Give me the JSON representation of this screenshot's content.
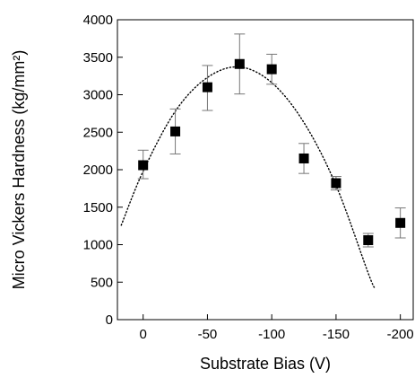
{
  "chart_data": {
    "type": "scatter",
    "xlabel": "Substrate Bias (V)",
    "ylabel": "Micro Vickers Hardness (kg/mm²)",
    "xlim": [
      20,
      -210
    ],
    "ylim": [
      0,
      4000
    ],
    "x_ticks": [
      0,
      -50,
      -100,
      -150,
      -200
    ],
    "x_tick_labels": [
      "0",
      "-50",
      "-100",
      "-150",
      "-200"
    ],
    "y_ticks": [
      0,
      500,
      1000,
      1500,
      2000,
      2500,
      3000,
      3500,
      4000
    ],
    "y_tick_labels": [
      "0",
      "500",
      "1000",
      "1500",
      "2000",
      "2500",
      "3000",
      "3500",
      "4000"
    ],
    "series": [
      {
        "marker": "square",
        "color": "#000000",
        "points": [
          {
            "x": 0,
            "y": 2060,
            "err_low": 1880,
            "err_high": 2260
          },
          {
            "x": -25,
            "y": 2510,
            "err_low": 2210,
            "err_high": 2810
          },
          {
            "x": -50,
            "y": 3100,
            "err_low": 2790,
            "err_high": 3390
          },
          {
            "x": -75,
            "y": 3410,
            "err_low": 3010,
            "err_high": 3810
          },
          {
            "x": -100,
            "y": 3340,
            "err_low": 3140,
            "err_high": 3540
          },
          {
            "x": -125,
            "y": 2150,
            "err_low": 1950,
            "err_high": 2350
          },
          {
            "x": -150,
            "y": 1820,
            "err_low": 1730,
            "err_high": 1910
          },
          {
            "x": -175,
            "y": 1060,
            "err_low": 970,
            "err_high": 1150
          },
          {
            "x": -200,
            "y": 1290,
            "err_low": 1090,
            "err_high": 1490
          }
        ]
      }
    ],
    "fit_curve": {
      "style": "dotted",
      "color": "#000000",
      "points": [
        [
          17,
          1260
        ],
        [
          0,
          1980
        ],
        [
          -25,
          2780
        ],
        [
          -50,
          3230
        ],
        [
          -75,
          3370
        ],
        [
          -100,
          3160
        ],
        [
          -125,
          2630
        ],
        [
          -150,
          1790
        ],
        [
          -175,
          620
        ],
        [
          -180,
          420
        ]
      ]
    }
  }
}
